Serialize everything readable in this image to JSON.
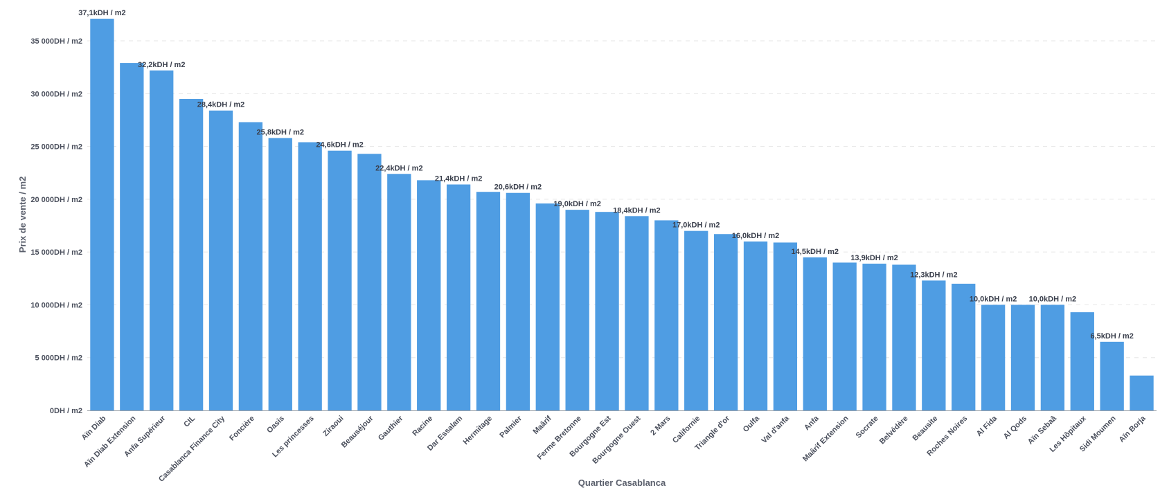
{
  "chart_data": {
    "type": "bar",
    "xlabel": "Quartier Casablanca",
    "ylabel": "Prix de vente / m2",
    "ylim": [
      0,
      37100
    ],
    "grid": true,
    "bar_color": "#4f9de3",
    "y_ticks": [
      0,
      5000,
      10000,
      15000,
      20000,
      25000,
      30000,
      35000
    ],
    "y_tick_labels": [
      "0DH / m2",
      "5 000DH / m2",
      "10 000DH / m2",
      "15 000DH / m2",
      "20 000DH / m2",
      "25 000DH / m2",
      "30 000DH / m2",
      "35 000DH / m2"
    ],
    "categories": [
      "Aïn Diab",
      "Aïn Diab Extension",
      "Anfa Supérieur",
      "CIL",
      "Casablanca Finance City",
      "Foncière",
      "Oasis",
      "Les princesses",
      "Ziraoui",
      "Beauséjour",
      "Gauthier",
      "Racine",
      "Dar Essalam",
      "Hermitage",
      "Palmier",
      "Maârif",
      "Ferme Bretonne",
      "Bourgogne Est",
      "Bourgogne Ouest",
      "2 Mars",
      "Californie",
      "Triangle d'or",
      "Oulfa",
      "Val d'anfa",
      "Anfa",
      "Maârif Extension",
      "Socrate",
      "Belvédère",
      "Beausite",
      "Roches Noires",
      "Al Fida",
      "Al Qods",
      "Aïn Sebaâ",
      "Les Hôpitaux",
      "Sidi Moumen",
      "Aïn Borja"
    ],
    "values": [
      37100,
      32900,
      32200,
      29500,
      28400,
      27300,
      25800,
      25400,
      24600,
      24300,
      22400,
      21800,
      21400,
      20700,
      20600,
      19600,
      19000,
      18800,
      18400,
      18000,
      17000,
      16700,
      16000,
      15900,
      14500,
      14000,
      13900,
      13800,
      12300,
      12000,
      10000,
      10000,
      10000,
      9300,
      6500,
      3300
    ],
    "data_labels": [
      "37,1kDH / m2",
      "",
      "32,2kDH / m2",
      "",
      "28,4kDH / m2",
      "",
      "25,8kDH / m2",
      "",
      "24,6kDH / m2",
      "",
      "22,4kDH / m2",
      "",
      "21,4kDH / m2",
      "",
      "20,6kDH / m2",
      "",
      "19,0kDH / m2",
      "",
      "18,4kDH / m2",
      "",
      "17,0kDH / m2",
      "",
      "16,0kDH / m2",
      "",
      "14,5kDH / m2",
      "",
      "13,9kDH / m2",
      "",
      "12,3kDH / m2",
      "",
      "10,0kDH / m2",
      "",
      "10,0kDH / m2",
      "",
      "6,5kDH / m2",
      ""
    ]
  }
}
